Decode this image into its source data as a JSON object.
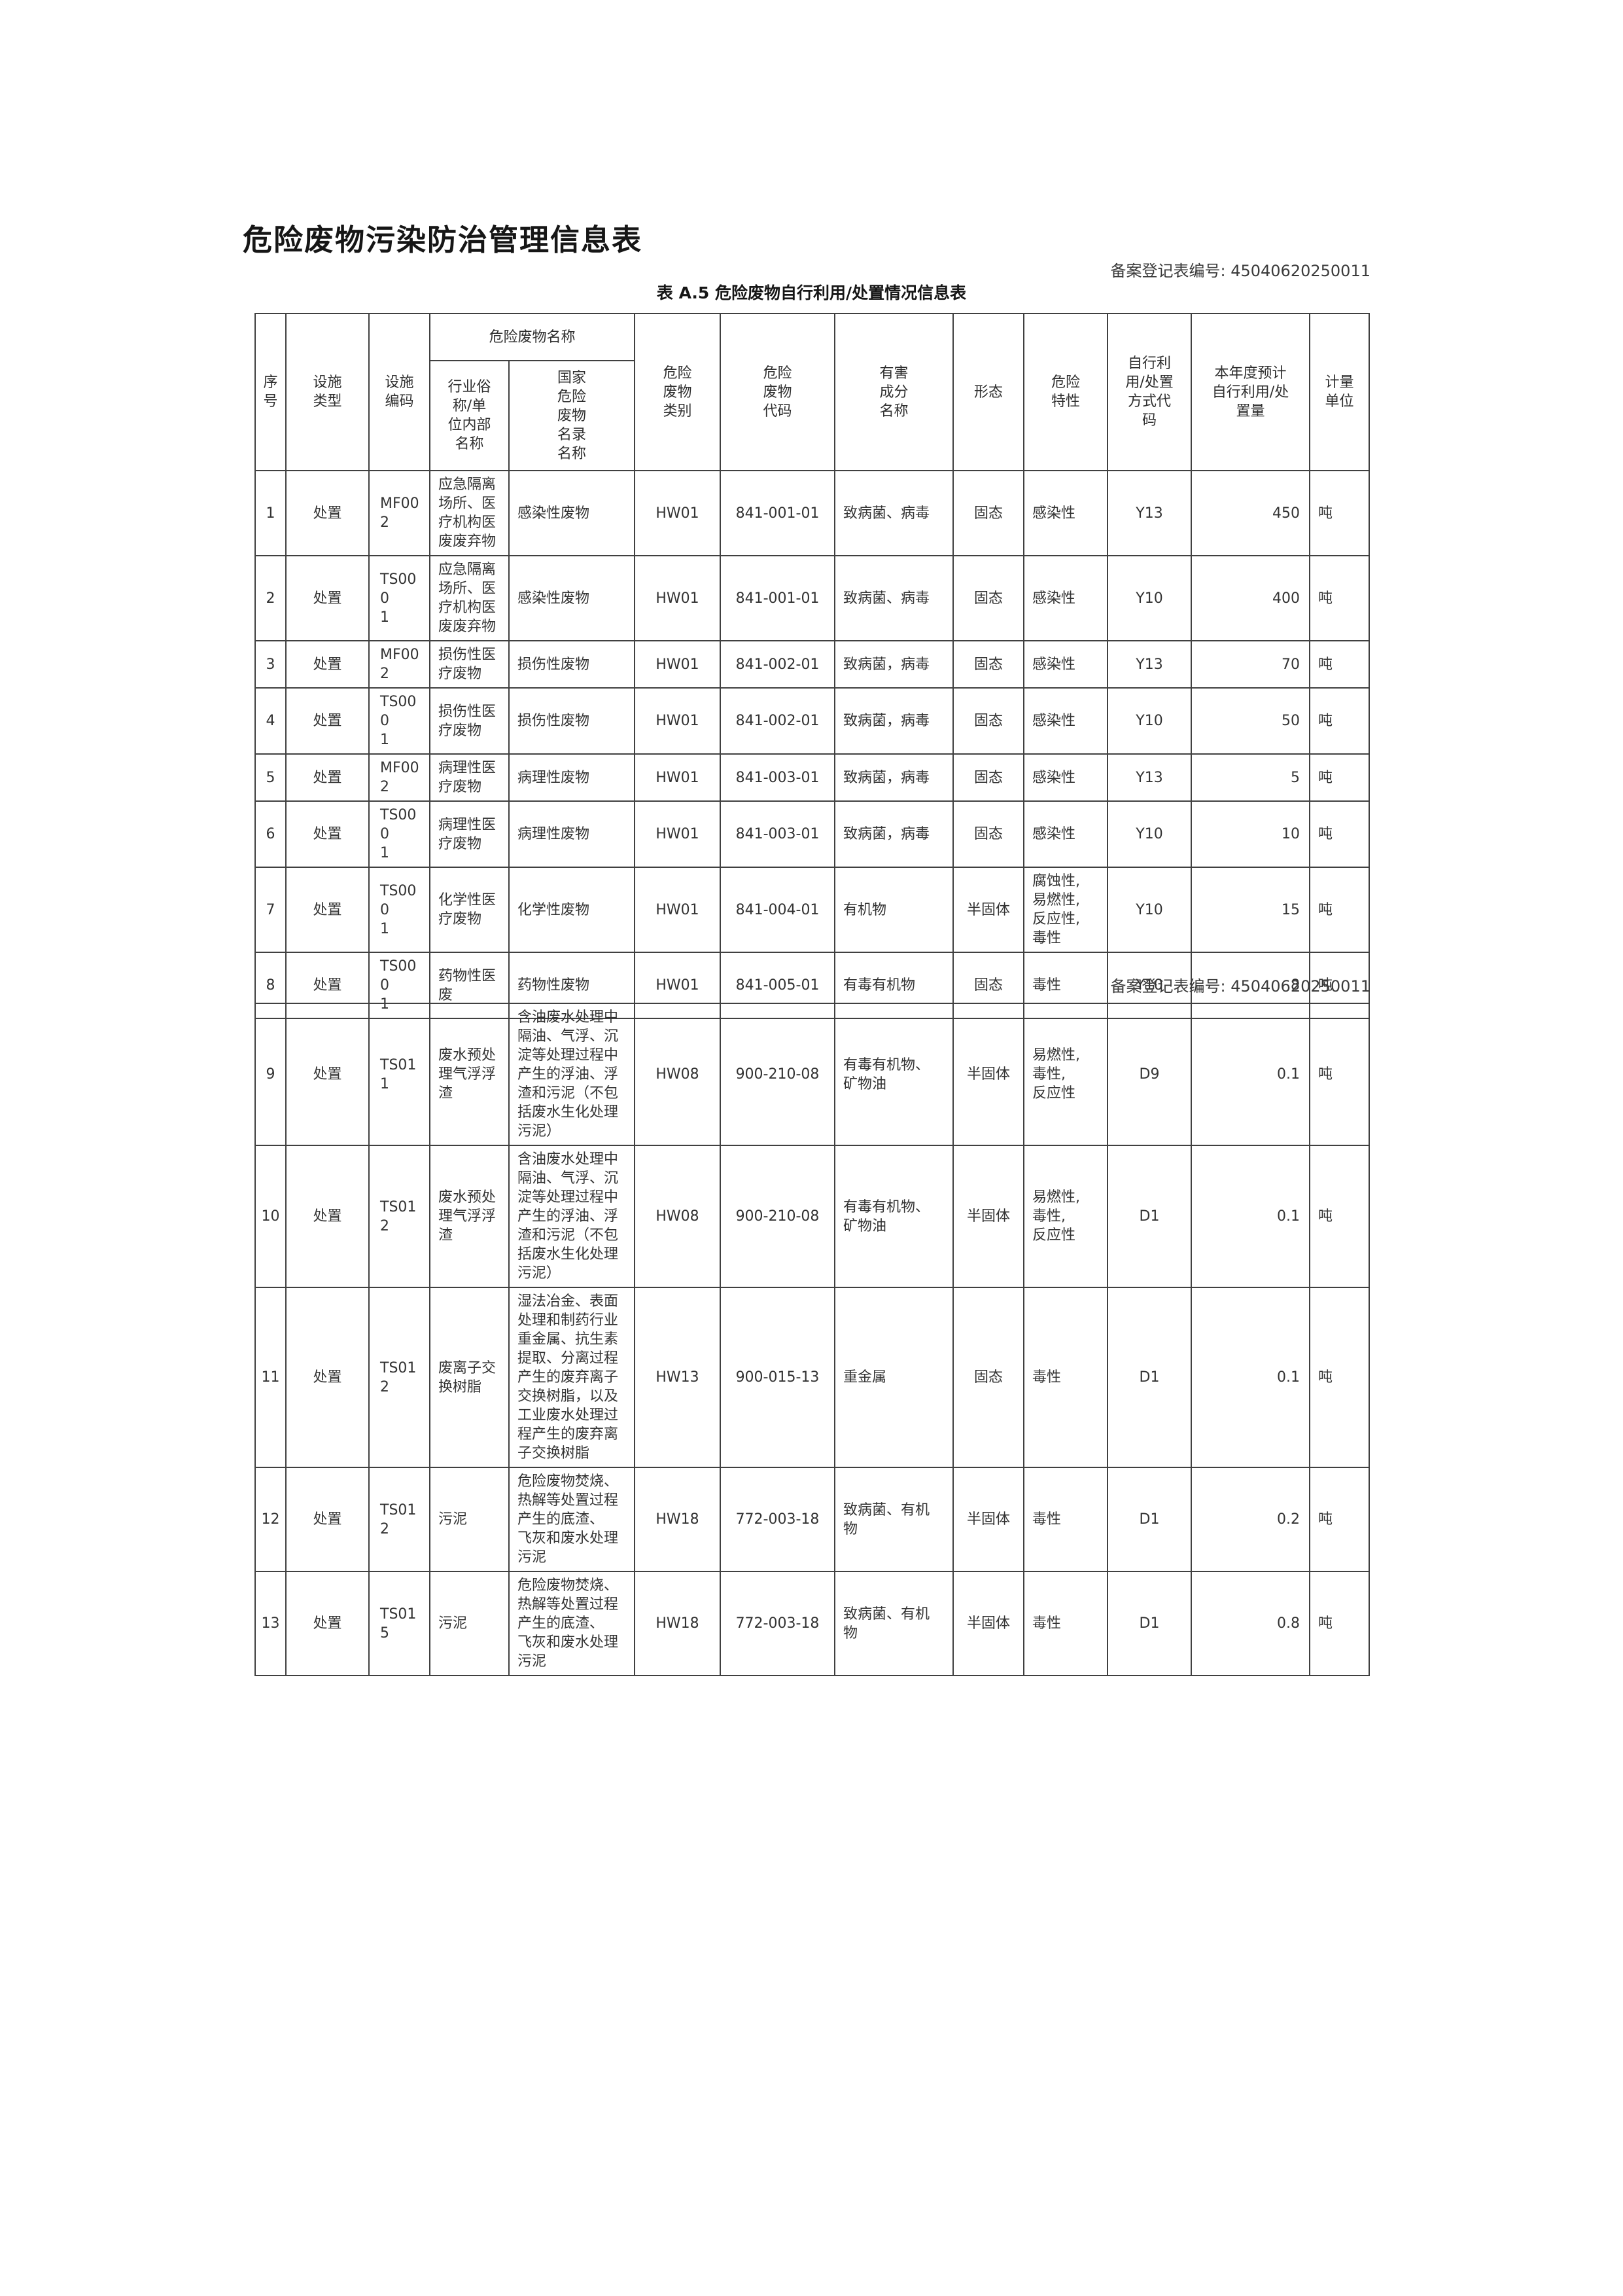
{
  "page": {
    "title": "危险废物污染防治管理信息表",
    "registration_note_top": "备案登记表编号: 45040620250011",
    "registration_note_mid": "备案登记表编号: 45040620250011",
    "table_caption": "表 A.5 危险废物自行利用/处置情况信息表"
  },
  "table": {
    "header": {
      "seq": "序\n号",
      "facility_type": "设施\n类型",
      "facility_code": "设施\n编码",
      "group_waste_name": "危险废物名称",
      "industry_name": "行业俗\n称/单\n位内部\n名称",
      "catalog_name": "国家\n危险\n废物\n名录\n名称",
      "waste_category": "危险\n废物\n类别",
      "waste_code": "危险\n废物\n代码",
      "harmful_component": "有害\n成分\n名称",
      "form": "形态",
      "hazard_property": "危险\n特性",
      "method_code": "自行利\n用/处置\n方式代\n码",
      "expected_amount": "本年度预计\n自行利用/处\n置量",
      "unit": "计量\n单位"
    },
    "rows": [
      [
        "1",
        "处置",
        "MF002",
        "应急隔离\n场所、医\n疗机构医\n废废弃物",
        "感染性废物",
        "HW01",
        "841-001-01",
        "致病菌、病毒",
        "固态",
        "感染性",
        "Y13",
        "450",
        "吨"
      ],
      [
        "2",
        "处置",
        "TS000\n1",
        "应急隔离\n场所、医\n疗机构医\n废废弃物",
        "感染性废物",
        "HW01",
        "841-001-01",
        "致病菌、病毒",
        "固态",
        "感染性",
        "Y10",
        "400",
        "吨"
      ],
      [
        "3",
        "处置",
        "MF002",
        "损伤性医\n疗废物",
        "损伤性废物",
        "HW01",
        "841-002-01",
        "致病菌，病毒",
        "固态",
        "感染性",
        "Y13",
        "70",
        "吨"
      ],
      [
        "4",
        "处置",
        "TS000\n1",
        "损伤性医\n疗废物",
        "损伤性废物",
        "HW01",
        "841-002-01",
        "致病菌，病毒",
        "固态",
        "感染性",
        "Y10",
        "50",
        "吨"
      ],
      [
        "5",
        "处置",
        "MF002",
        "病理性医\n疗废物",
        "病理性废物",
        "HW01",
        "841-003-01",
        "致病菌，病毒",
        "固态",
        "感染性",
        "Y13",
        "5",
        "吨"
      ],
      [
        "6",
        "处置",
        "TS000\n1",
        "病理性医\n疗废物",
        "病理性废物",
        "HW01",
        "841-003-01",
        "致病菌，病毒",
        "固态",
        "感染性",
        "Y10",
        "10",
        "吨"
      ],
      [
        "7",
        "处置",
        "TS000\n1",
        "化学性医\n疗废物",
        "化学性废物",
        "HW01",
        "841-004-01",
        "有机物",
        "半固体",
        "腐蚀性,\n易燃性,\n反应性,\n毒性",
        "Y10",
        "15",
        "吨"
      ],
      [
        "8",
        "处置",
        "TS000\n1",
        "药物性医\n废",
        "药物性废物",
        "HW01",
        "841-005-01",
        "有毒有机物",
        "固态",
        "毒性",
        "Y10",
        "8",
        "吨"
      ],
      [
        "9",
        "处置",
        "TS011",
        "废水预处\n理气浮浮\n渣",
        "含油废水处理中\n隔油、气浮、沉\n淀等处理过程中\n产生的浮油、浮\n渣和污泥（不包\n括废水生化处理\n污泥）",
        "HW08",
        "900-210-08",
        "有毒有机物、\n矿物油",
        "半固体",
        "易燃性,\n毒性,\n反应性",
        "D9",
        "0.1",
        "吨"
      ],
      [
        "10",
        "处置",
        "TS012",
        "废水预处\n理气浮浮\n渣",
        "含油废水处理中\n隔油、气浮、沉\n淀等处理过程中\n产生的浮油、浮\n渣和污泥（不包\n括废水生化处理\n污泥）",
        "HW08",
        "900-210-08",
        "有毒有机物、\n矿物油",
        "半固体",
        "易燃性,\n毒性,\n反应性",
        "D1",
        "0.1",
        "吨"
      ],
      [
        "11",
        "处置",
        "TS012",
        "废离子交\n换树脂",
        "湿法冶金、表面\n处理和制药行业\n重金属、抗生素\n提取、分离过程\n产生的废弃离子\n交换树脂，以及\n工业废水处理过\n程产生的废弃离\n子交换树脂",
        "HW13",
        "900-015-13",
        "重金属",
        "固态",
        "毒性",
        "D1",
        "0.1",
        "吨"
      ],
      [
        "12",
        "处置",
        "TS012",
        "污泥",
        "危险废物焚烧、\n热解等处置过程\n产生的底渣、\n飞灰和废水处理\n污泥",
        "HW18",
        "772-003-18",
        "致病菌、有机\n物",
        "半固体",
        "毒性",
        "D1",
        "0.2",
        "吨"
      ],
      [
        "13",
        "处置",
        "TS015",
        "污泥",
        "危险废物焚烧、\n热解等处置过程\n产生的底渣、\n飞灰和废水处理\n污泥",
        "HW18",
        "772-003-18",
        "致病菌、有机\n物",
        "半固体",
        "毒性",
        "D1",
        "0.8",
        "吨"
      ]
    ]
  }
}
